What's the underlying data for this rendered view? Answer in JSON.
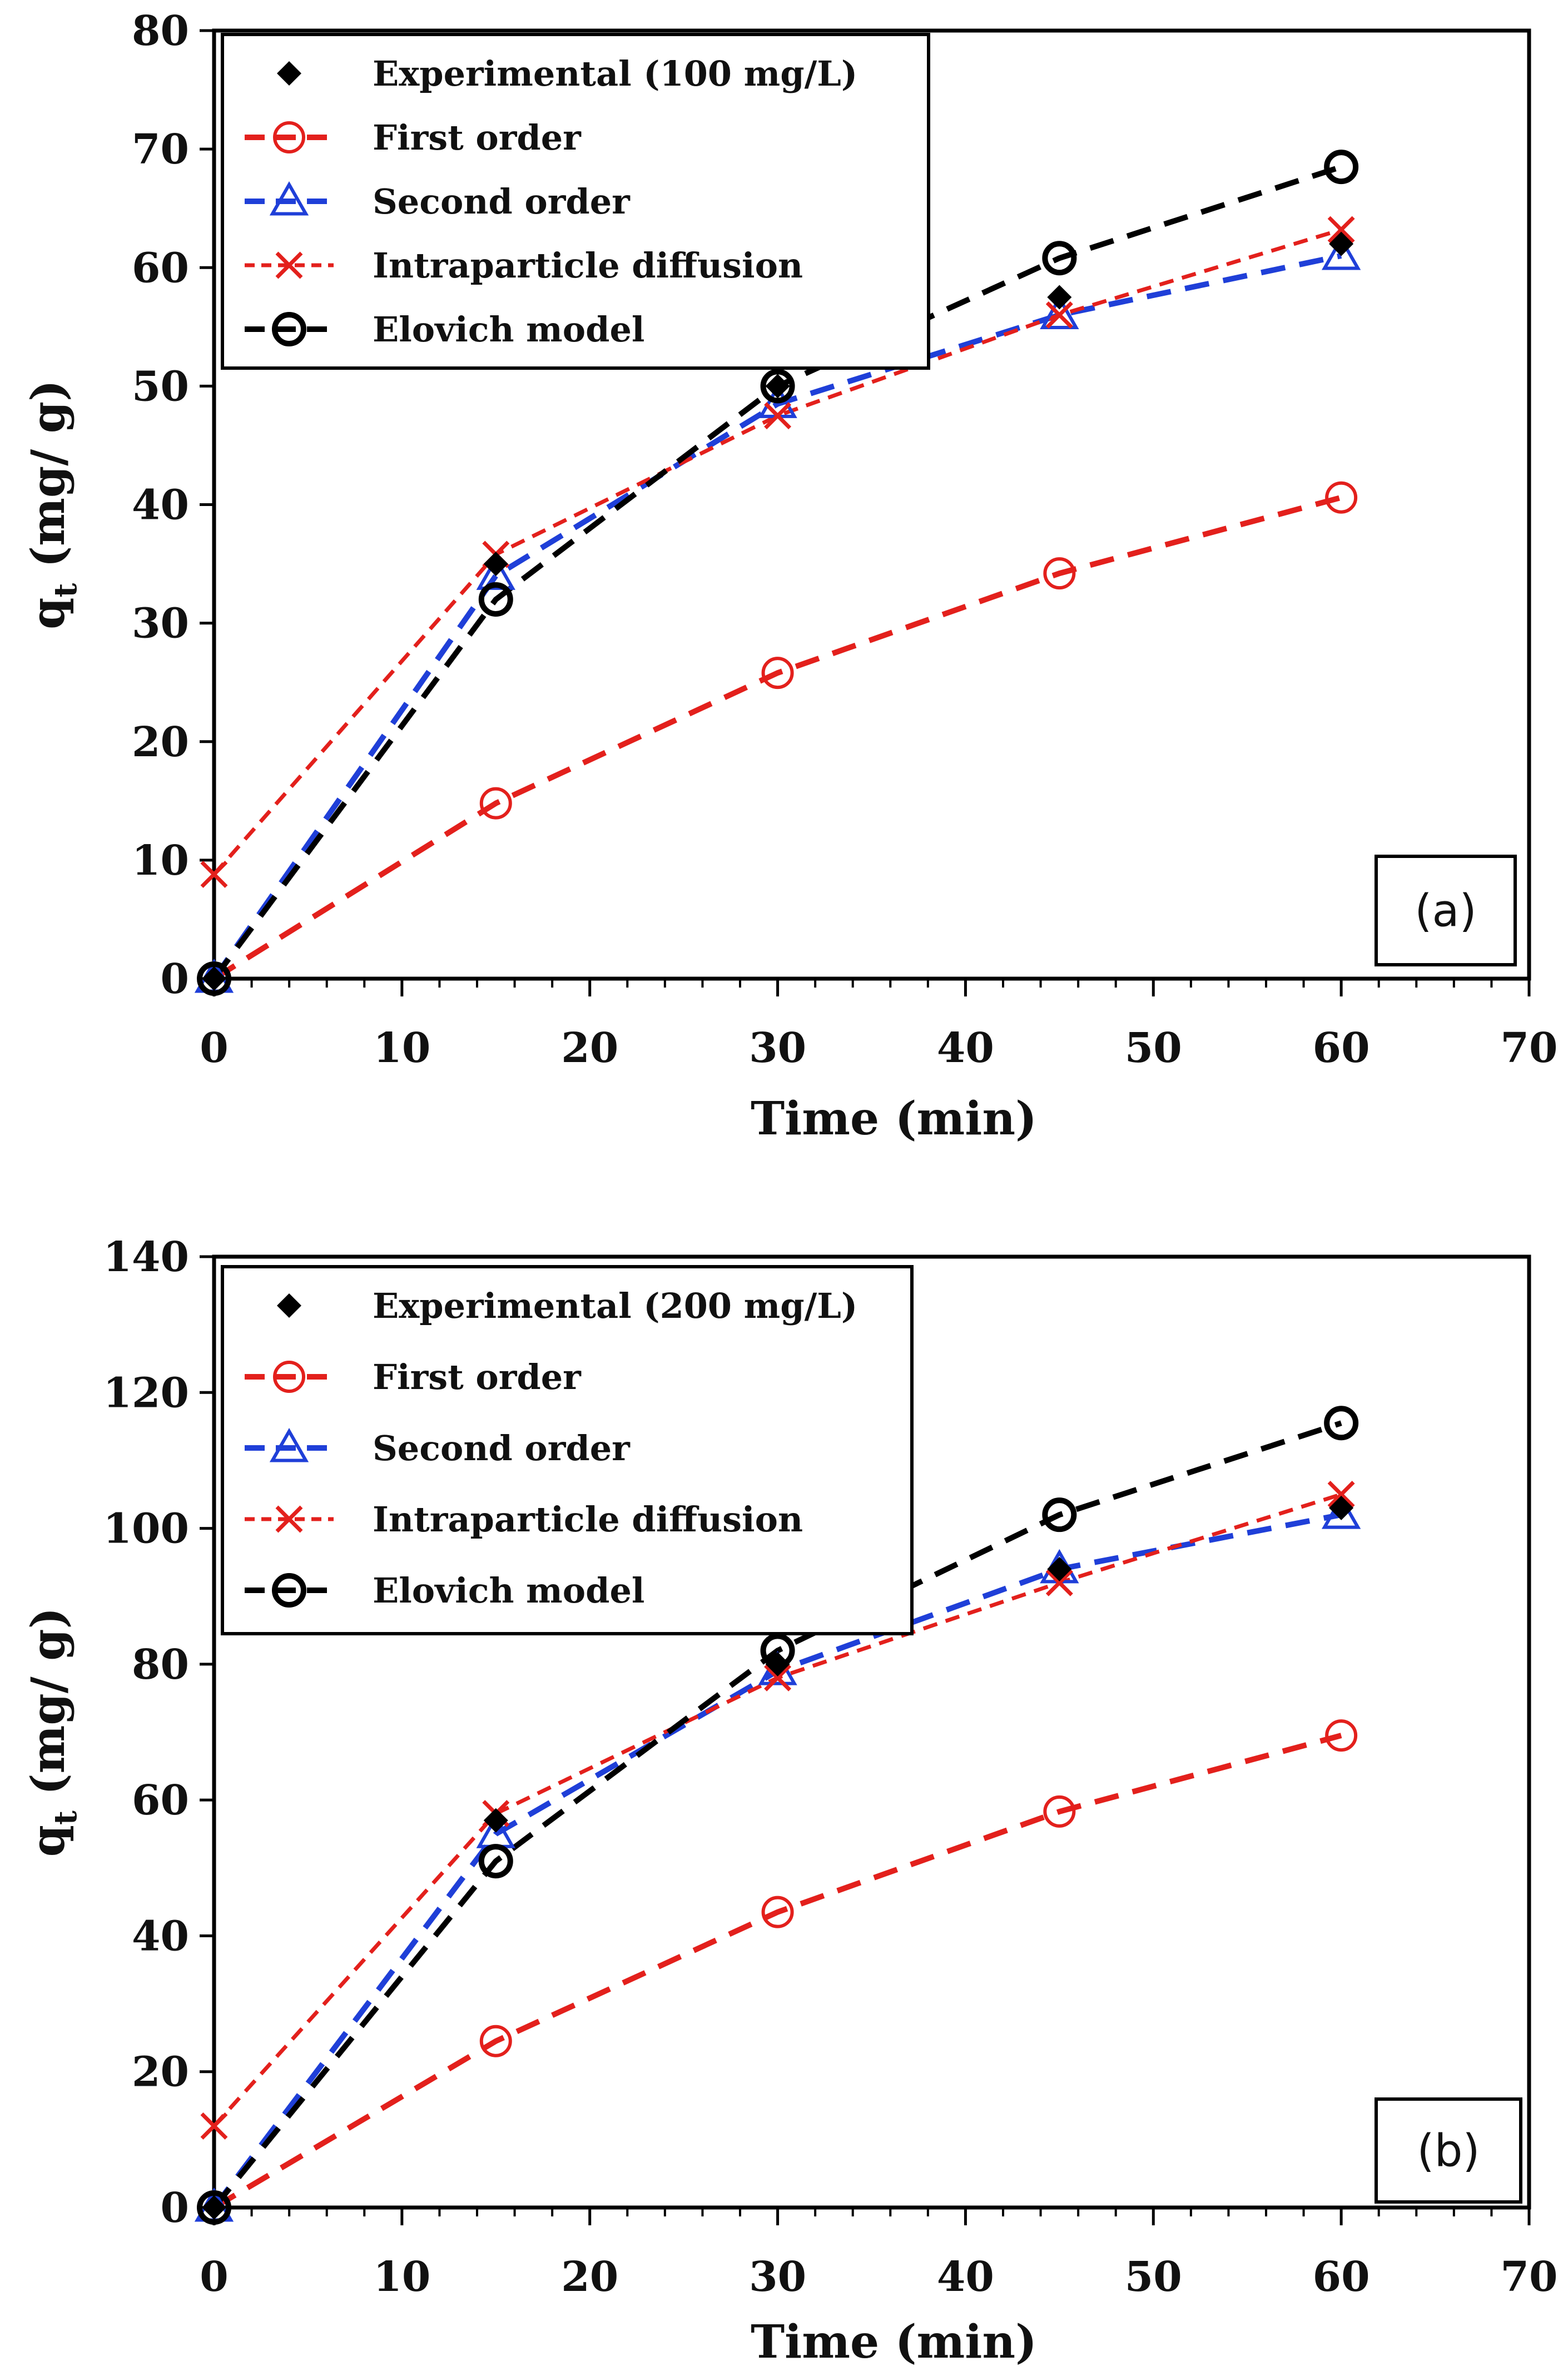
{
  "chart_data": [
    {
      "panel": "a",
      "type": "scatter",
      "panel_label": "(a)",
      "xlabel": "Time (min)",
      "ylabel_main": "q",
      "ylabel_sub": "t",
      "ylabel_unit": "(mg/ g)",
      "xlim": [
        0,
        70
      ],
      "ylim": [
        0,
        80
      ],
      "xticks": [
        0,
        10,
        20,
        30,
        40,
        50,
        60,
        70
      ],
      "yticks": [
        0,
        10,
        20,
        30,
        40,
        50,
        60,
        70,
        80
      ],
      "grid": false,
      "legend_position": "top-left",
      "series": [
        {
          "name": "Experimental (100 mg/L)",
          "color": "#000000",
          "marker": "diamond",
          "line": "none",
          "x": [
            0,
            15,
            30,
            45,
            60
          ],
          "y": [
            0,
            35,
            50,
            57.5,
            62
          ]
        },
        {
          "name": "First order",
          "color": "#e3201c",
          "marker": "circle",
          "line": "dashed",
          "x": [
            0,
            15,
            30,
            45,
            60
          ],
          "y": [
            0,
            14.8,
            25.8,
            34.2,
            40.6
          ]
        },
        {
          "name": "Second order",
          "color": "#1f3fd8",
          "marker": "triangle",
          "line": "dashed",
          "x": [
            0,
            15,
            30,
            45,
            60
          ],
          "y": [
            0,
            34,
            48.5,
            56,
            61
          ]
        },
        {
          "name": "Intraparticle diffusion",
          "color": "#e3201c",
          "marker": "x",
          "line": "dashed-fine",
          "x": [
            0,
            15,
            30,
            45,
            60
          ],
          "y": [
            8.8,
            35.8,
            47.5,
            56,
            63.2
          ]
        },
        {
          "name": "Elovich model",
          "color": "#000000",
          "marker": "circle",
          "line": "dashed",
          "x": [
            0,
            15,
            30,
            45,
            60
          ],
          "y": [
            0,
            32,
            50,
            60.8,
            68.5
          ]
        }
      ]
    },
    {
      "panel": "b",
      "type": "scatter",
      "panel_label": "(b)",
      "xlabel": "Time (min)",
      "ylabel_main": "q",
      "ylabel_sub": "t",
      "ylabel_unit": "(mg/ g)",
      "xlim": [
        0,
        70
      ],
      "ylim": [
        0,
        140
      ],
      "xticks": [
        0,
        10,
        20,
        30,
        40,
        50,
        60,
        70
      ],
      "yticks": [
        0,
        20,
        40,
        60,
        80,
        100,
        120,
        140
      ],
      "grid": false,
      "legend_position": "top-left",
      "series": [
        {
          "name": "Experimental (200 mg/L)",
          "color": "#000000",
          "marker": "diamond",
          "line": "none",
          "x": [
            0,
            15,
            30,
            45,
            60
          ],
          "y": [
            0,
            57,
            80,
            94,
            103
          ]
        },
        {
          "name": "First order",
          "color": "#e3201c",
          "marker": "circle",
          "line": "dashed",
          "x": [
            0,
            15,
            30,
            45,
            60
          ],
          "y": [
            0,
            24.5,
            43.5,
            58.3,
            69.5
          ]
        },
        {
          "name": "Second order",
          "color": "#1f3fd8",
          "marker": "triangle",
          "line": "dashed",
          "x": [
            0,
            15,
            30,
            45,
            60
          ],
          "y": [
            0,
            55,
            79,
            94,
            102
          ]
        },
        {
          "name": "Intraparticle diffusion",
          "color": "#e3201c",
          "marker": "x",
          "line": "dashed-fine",
          "x": [
            0,
            15,
            30,
            45,
            60
          ],
          "y": [
            12,
            58,
            78,
            92,
            105
          ]
        },
        {
          "name": "Elovich model",
          "color": "#000000",
          "marker": "circle",
          "line": "dashed",
          "x": [
            0,
            15,
            30,
            45,
            60
          ],
          "y": [
            0,
            51,
            82,
            102,
            115.5
          ]
        }
      ]
    }
  ]
}
